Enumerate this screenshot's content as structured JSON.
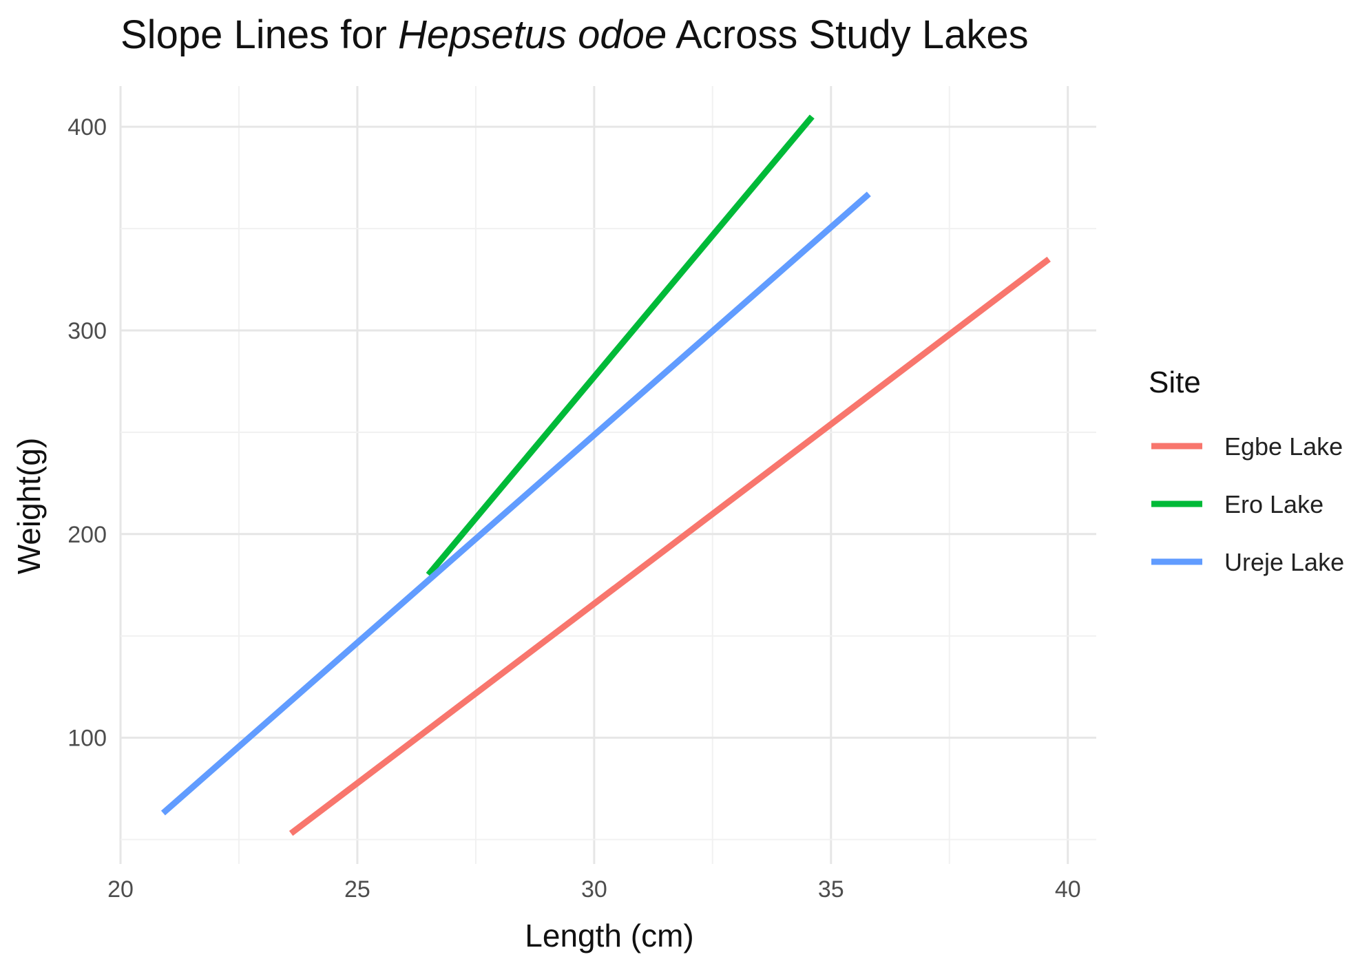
{
  "chart_data": {
    "type": "line",
    "title_parts": [
      {
        "text": "Slope Lines for ",
        "italic": false
      },
      {
        "text": "Hepsetus odoe",
        "italic": true
      },
      {
        "text": " Across Study Lakes",
        "italic": false
      }
    ],
    "xlabel": "Length (cm)",
    "ylabel": "Weight(g)",
    "xlim": [
      20,
      40.6
    ],
    "ylim": [
      38,
      420
    ],
    "x_ticks": [
      20,
      25,
      30,
      35,
      40
    ],
    "y_ticks": [
      100,
      200,
      300,
      400
    ],
    "grid": true,
    "legend": {
      "title": "Site",
      "position": "right"
    },
    "series": [
      {
        "name": "Egbe Lake",
        "color": "#F8766D",
        "x": [
          23.6,
          39.6
        ],
        "y": [
          53,
          335
        ]
      },
      {
        "name": "Ero Lake",
        "color": "#00BA38",
        "x": [
          26.5,
          34.6
        ],
        "y": [
          180,
          405
        ]
      },
      {
        "name": "Ureje Lake",
        "color": "#619CFF",
        "x": [
          20.9,
          35.8
        ],
        "y": [
          63,
          367
        ]
      }
    ]
  }
}
